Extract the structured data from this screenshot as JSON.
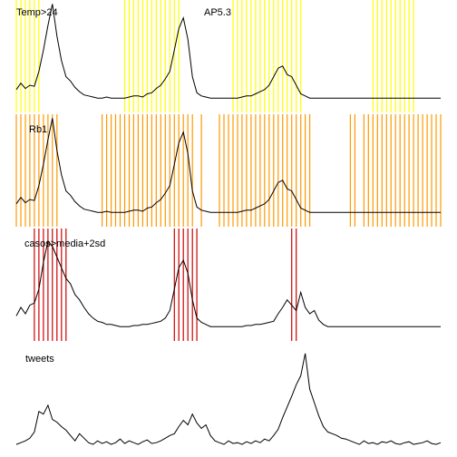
{
  "title": "AP5.3",
  "colors": {
    "temp": "#ffff00",
    "rb1": "#ff9900",
    "casos": "#cc0000",
    "line": "#000000",
    "background": "#ffffff"
  },
  "chart_data": [
    {
      "type": "line",
      "label": "Temp>24",
      "band_color": "#ffff00",
      "x_range": [
        1,
        95
      ],
      "ylim": [
        0,
        100
      ],
      "bands": [
        1,
        2,
        3,
        4,
        5,
        6,
        25,
        26,
        27,
        28,
        29,
        30,
        31,
        32,
        33,
        34,
        35,
        36,
        37,
        49,
        50,
        51,
        52,
        53,
        54,
        55,
        56,
        57,
        58,
        59,
        60,
        61,
        62,
        63,
        64,
        80,
        81,
        82,
        83,
        84,
        85,
        86,
        87,
        88,
        89
      ],
      "series": [
        {
          "values": [
            18,
            24,
            19,
            22,
            21,
            35,
            55,
            78,
            98,
            68,
            45,
            30,
            26,
            20,
            16,
            13,
            12,
            11,
            10,
            10,
            11,
            10,
            10,
            10,
            10,
            11,
            12,
            12,
            11,
            14,
            15,
            19,
            22,
            28,
            35,
            55,
            75,
            85,
            65,
            30,
            15,
            12,
            11,
            10,
            10,
            10,
            10,
            10,
            10,
            10,
            11,
            12,
            12,
            14,
            16,
            18,
            22,
            30,
            38,
            40,
            32,
            30,
            22,
            14,
            12,
            10,
            10,
            10,
            10,
            10,
            10,
            10,
            10,
            10,
            10,
            10,
            10,
            10,
            10,
            10,
            10,
            10,
            10,
            10,
            10,
            10,
            10,
            10,
            10,
            10,
            10,
            10,
            10,
            10,
            10
          ]
        }
      ]
    },
    {
      "type": "line",
      "label": "Rb1",
      "band_color": "#ff9900",
      "x_range": [
        1,
        95
      ],
      "ylim": [
        0,
        100
      ],
      "bands": [
        1,
        2,
        3,
        4,
        5,
        6,
        7,
        8,
        9,
        10,
        20,
        21,
        22,
        23,
        24,
        25,
        26,
        27,
        28,
        29,
        30,
        31,
        32,
        33,
        34,
        35,
        36,
        37,
        38,
        39,
        40,
        42,
        46,
        47,
        48,
        49,
        50,
        51,
        52,
        53,
        54,
        55,
        56,
        57,
        58,
        59,
        60,
        61,
        62,
        63,
        64,
        65,
        66,
        75,
        76,
        78,
        79,
        80,
        81,
        82,
        83,
        84,
        85,
        86,
        87,
        88,
        89,
        90,
        91,
        92,
        93,
        94,
        95
      ],
      "series": [
        {
          "values": [
            18,
            24,
            19,
            22,
            21,
            35,
            55,
            78,
            98,
            68,
            45,
            30,
            26,
            20,
            16,
            13,
            12,
            11,
            10,
            10,
            11,
            10,
            10,
            10,
            10,
            11,
            12,
            12,
            11,
            14,
            15,
            19,
            22,
            28,
            35,
            55,
            75,
            85,
            65,
            30,
            15,
            12,
            11,
            10,
            10,
            10,
            10,
            10,
            10,
            10,
            11,
            12,
            12,
            14,
            16,
            18,
            22,
            30,
            38,
            40,
            32,
            30,
            22,
            14,
            12,
            10,
            10,
            10,
            10,
            10,
            10,
            10,
            10,
            10,
            10,
            10,
            10,
            10,
            10,
            10,
            10,
            10,
            10,
            10,
            10,
            10,
            10,
            10,
            10,
            10,
            10,
            10,
            10,
            10,
            10
          ]
        }
      ]
    },
    {
      "type": "line",
      "label": "casos>media+2sd",
      "band_color": "#cc0000",
      "x_range": [
        1,
        95
      ],
      "ylim": [
        0,
        100
      ],
      "bands": [
        5,
        6,
        7,
        8,
        9,
        10,
        11,
        12,
        36,
        37,
        38,
        39,
        40,
        41,
        62,
        63
      ],
      "series": [
        {
          "values": [
            20,
            28,
            22,
            30,
            32,
            45,
            70,
            90,
            85,
            75,
            65,
            55,
            50,
            40,
            35,
            28,
            22,
            18,
            15,
            14,
            12,
            12,
            11,
            10,
            10,
            10,
            11,
            11,
            12,
            12,
            13,
            14,
            15,
            18,
            25,
            45,
            65,
            72,
            60,
            35,
            18,
            14,
            12,
            10,
            10,
            10,
            10,
            10,
            10,
            10,
            10,
            11,
            11,
            12,
            12,
            13,
            14,
            15,
            22,
            28,
            35,
            30,
            25,
            42,
            28,
            22,
            25,
            16,
            12,
            10,
            10,
            10,
            10,
            10,
            10,
            10,
            10,
            10,
            10,
            10,
            10,
            10,
            10,
            10,
            10,
            10,
            10,
            10,
            10,
            10,
            10,
            10,
            10,
            10,
            10
          ]
        }
      ]
    },
    {
      "type": "line",
      "label": "tweets",
      "x_range": [
        1,
        95
      ],
      "ylim": [
        0,
        120
      ],
      "bands": [],
      "series": [
        {
          "values": [
            8,
            10,
            12,
            15,
            22,
            45,
            42,
            52,
            36,
            33,
            28,
            24,
            18,
            12,
            20,
            15,
            10,
            8,
            12,
            9,
            11,
            8,
            10,
            14,
            9,
            12,
            10,
            8,
            11,
            13,
            9,
            10,
            12,
            15,
            18,
            20,
            28,
            35,
            30,
            42,
            32,
            26,
            30,
            18,
            12,
            10,
            8,
            12,
            9,
            10,
            8,
            11,
            9,
            12,
            10,
            14,
            12,
            18,
            25,
            38,
            50,
            62,
            75,
            85,
            110,
            70,
            55,
            40,
            28,
            22,
            20,
            18,
            15,
            14,
            12,
            10,
            8,
            12,
            9,
            10,
            8,
            11,
            10,
            12,
            9,
            8,
            10,
            11,
            8,
            9,
            10,
            12,
            9,
            8,
            10
          ]
        }
      ]
    }
  ]
}
